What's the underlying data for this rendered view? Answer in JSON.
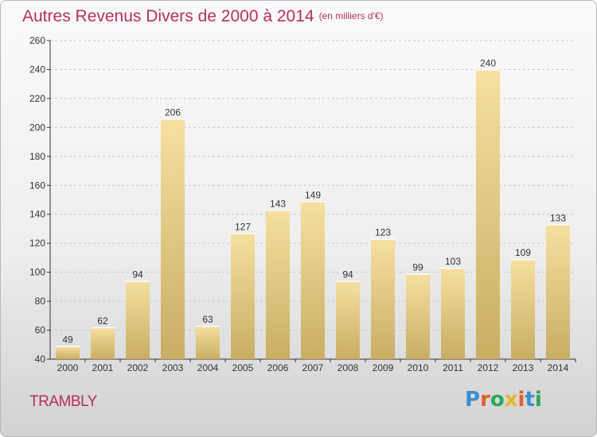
{
  "title": "Autres Revenus Divers de 2000 à 2014",
  "unit": "(en milliers d'€)",
  "location": "TRAMBLY",
  "logo": {
    "text": "Proxiti",
    "letter_colors": [
      "#3a8fd0",
      "#e85c2a",
      "#2aa65b",
      "#e8b52a",
      "#e85c2a",
      "#3a8fd0",
      "#2aa65b"
    ]
  },
  "colors": {
    "title": "#b6305a",
    "bar_light": "#f6e0a0",
    "bar_dark": "#c9ad63",
    "grid": "#c8c8c8",
    "axis": "#333333"
  },
  "chart_data": {
    "type": "bar",
    "title": "Autres Revenus Divers de 2000 à 2014",
    "subtitle": "(en milliers d'€)",
    "categories": [
      "2000",
      "2001",
      "2002",
      "2003",
      "2004",
      "2005",
      "2006",
      "2007",
      "2008",
      "2009",
      "2010",
      "2011",
      "2012",
      "2013",
      "2014"
    ],
    "values": [
      49,
      62,
      94,
      206,
      63,
      127,
      143,
      149,
      94,
      123,
      99,
      103,
      240,
      109,
      133
    ],
    "xlabel": "",
    "ylabel": "",
    "ylim": [
      40,
      260
    ],
    "yticks": [
      40,
      60,
      80,
      100,
      120,
      140,
      160,
      180,
      200,
      220,
      240,
      260
    ],
    "grid": true,
    "grid_style": "dashed horizontal",
    "data_labels": true
  }
}
